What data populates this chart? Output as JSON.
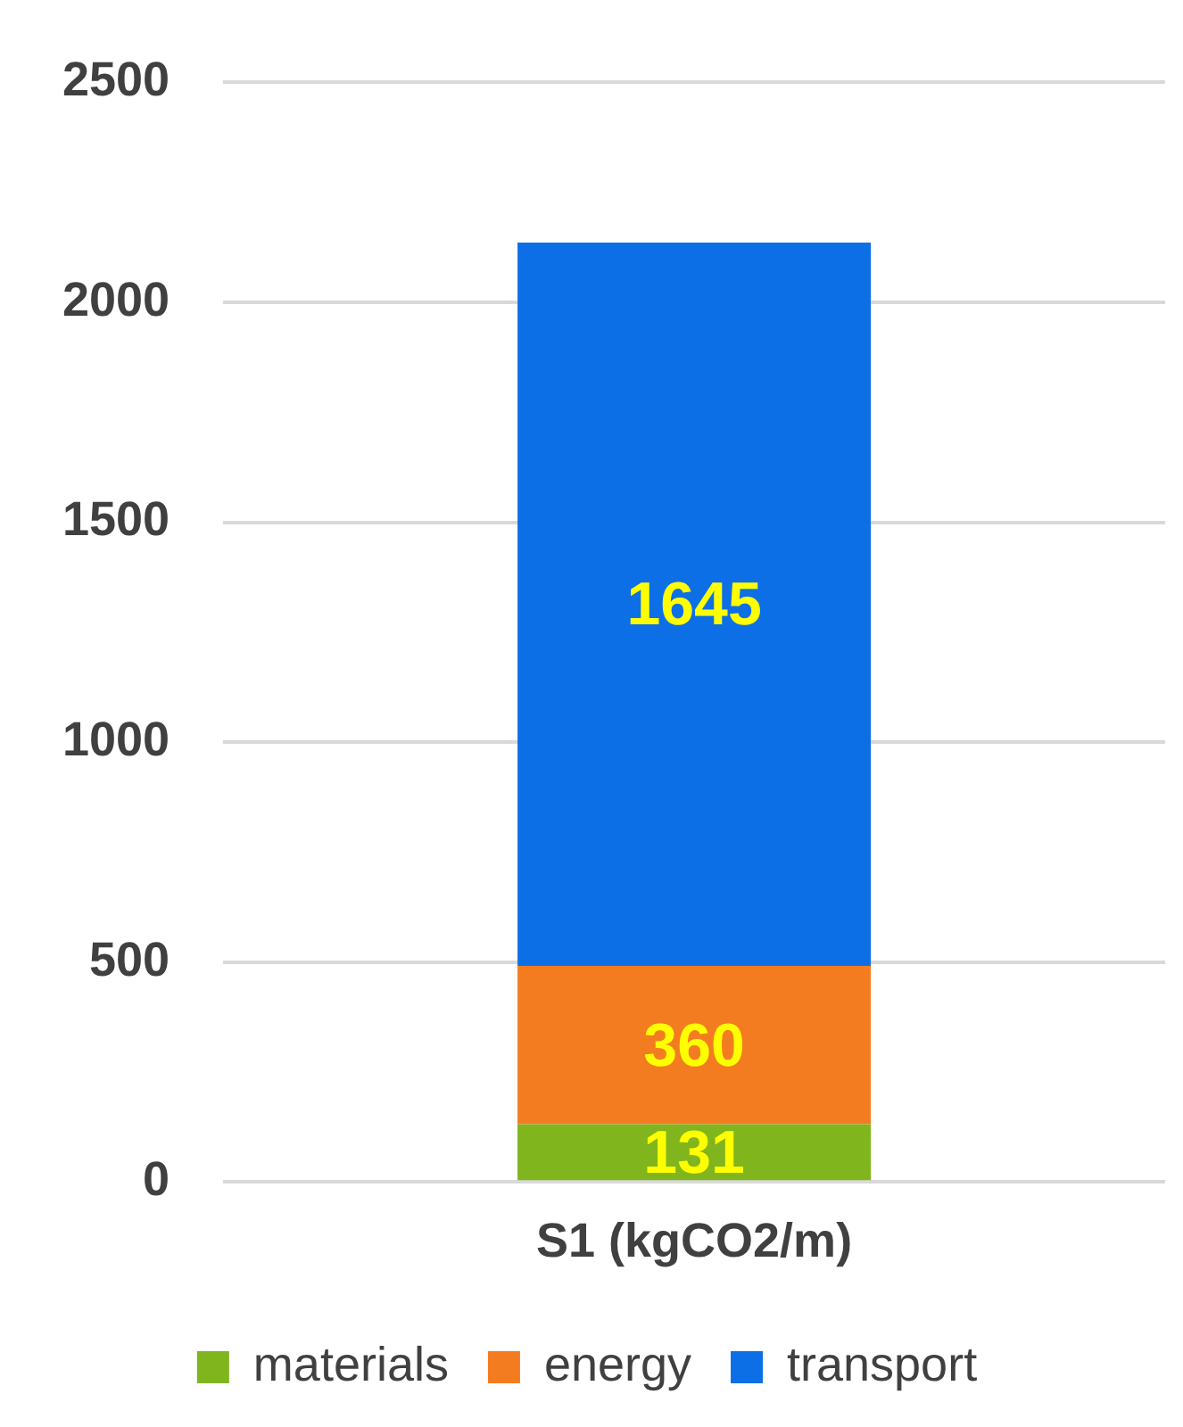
{
  "chart_data": {
    "type": "bar",
    "stacked": true,
    "categories": [
      "S1 (kgCO2/m)"
    ],
    "series": [
      {
        "name": "materials",
        "color": "#80b51e",
        "values": [
          131
        ]
      },
      {
        "name": "energy",
        "color": "#f47c20",
        "values": [
          360
        ]
      },
      {
        "name": "transport",
        "color": "#0d6fe6",
        "values": [
          1645
        ]
      }
    ],
    "ylim": [
      0,
      2500
    ],
    "yticks": [
      0,
      500,
      1000,
      1500,
      2000,
      2500
    ],
    "grid": "y",
    "legend": "bottom",
    "data_labels": true
  }
}
